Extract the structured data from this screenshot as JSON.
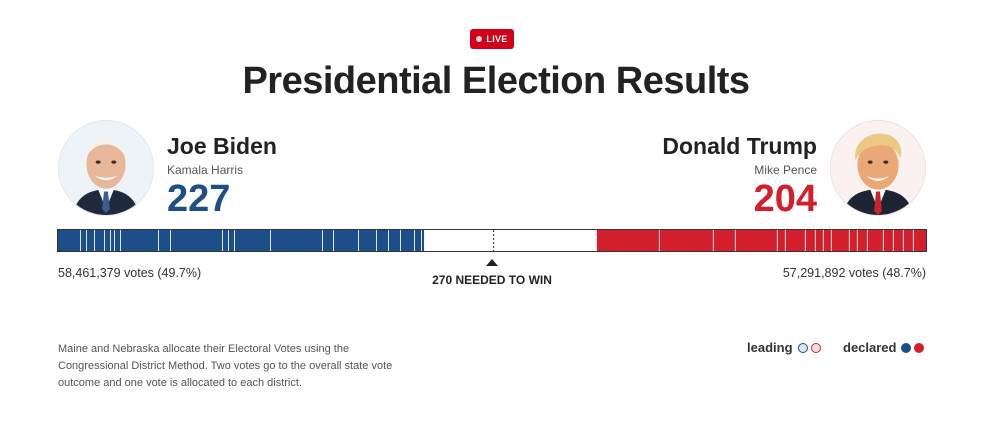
{
  "header": {
    "live_label": "LIVE",
    "title": "Presidential Election Results"
  },
  "candidates": {
    "dem": {
      "name": "Joe Biden",
      "running_mate": "Kamala Harris",
      "electoral_votes": "227",
      "popular_vote": "58,461,379 votes (49.7%)",
      "color": "#1c4f8a"
    },
    "rep": {
      "name": "Donald Trump",
      "running_mate": "Mike Pence",
      "electoral_votes": "204",
      "popular_vote": "57,291,892 votes (48.7%)",
      "color": "#d21f2b"
    }
  },
  "bar": {
    "total": 538,
    "dem_ev": 227,
    "rep_ev": 204,
    "needed_to_win": 270,
    "threshold_label": "270 NEEDED TO WIN"
  },
  "footnote": "Maine and Nebraska allocate their Electoral Votes using the Congressional District Method. Two votes go to the overall state vote outcome and one vote is allocated to each district.",
  "legend": {
    "leading_label": "leading",
    "declared_label": "declared"
  }
}
